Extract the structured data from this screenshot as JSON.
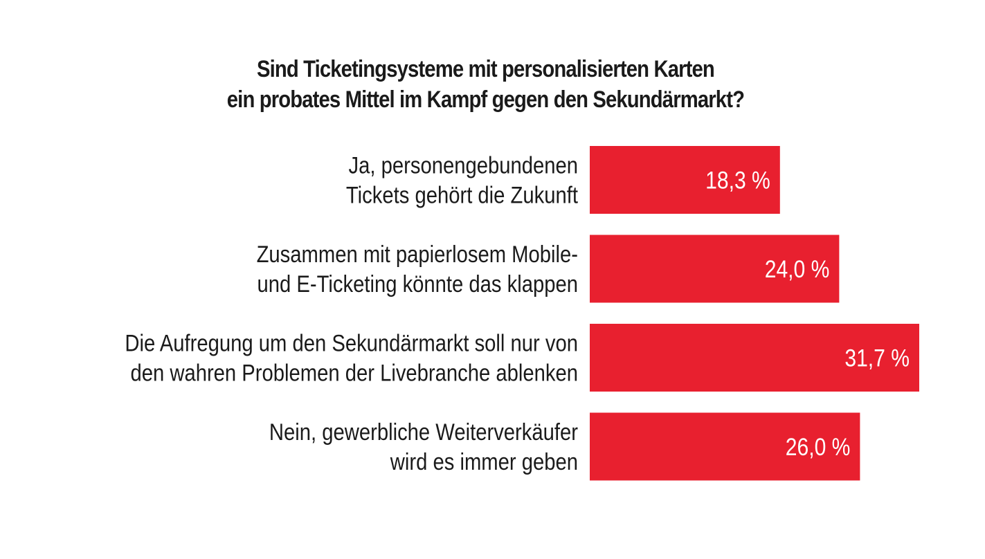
{
  "chart_data": {
    "type": "bar",
    "orientation": "horizontal",
    "title_lines": [
      "Sind Ticketingsysteme mit personalisierten Karten",
      "ein probates Mittel im Kampf gegen den Sekundärmarkt?"
    ],
    "categories": [
      [
        "Ja, personengebundenen",
        "Tickets gehört die Zukunft"
      ],
      [
        "Zusammen mit papierlosem Mobile-",
        "und E-Ticketing könnte das klappen"
      ],
      [
        "Die Aufregung um den Sekundärmarkt soll nur von",
        "den wahren Problemen der Livebranche ablenken"
      ],
      [
        "Nein, gewerbliche Weiterverkäufer",
        "wird es immer geben"
      ]
    ],
    "values": [
      18.3,
      24.0,
      31.7,
      26.0
    ],
    "value_labels": [
      "18,3 %",
      "24,0 %",
      "31,7 %",
      "26,0 %"
    ],
    "bar_color": "#e8202f",
    "value_label_color": "#ffffff",
    "xlim": [
      0,
      31.7
    ],
    "grid": false,
    "legend": "none"
  }
}
